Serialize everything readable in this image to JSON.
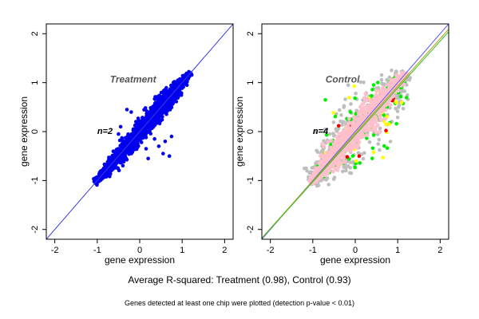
{
  "summary": "Average R-squared: Treatment (0.98), Control (0.93)",
  "footnote": "Genes detected at least one chip were plotted (detection p-value < 0.01)",
  "chart_data": [
    {
      "type": "scatter",
      "title": "Treatment",
      "annotation": "n=2",
      "xlabel": "gene expression",
      "ylabel": "gene expression",
      "xlim": [
        -2.2,
        2.2
      ],
      "ylim": [
        -2.2,
        2.2
      ],
      "xticks": [
        -2,
        -1,
        0,
        1,
        2
      ],
      "yticks": [
        -2,
        -1,
        0,
        1,
        2
      ],
      "grid": false,
      "reference_lines": [
        {
          "slope": 1,
          "intercept": 0,
          "color": "#3b3bdb"
        }
      ],
      "series": [
        {
          "color": "#0000ee",
          "cloud": {
            "center": [
              0.0,
              0.0
            ],
            "x_range": [
              -1.05,
              1.2
            ],
            "spread": 0.12,
            "count": 1400
          },
          "outliers": [
            [
              -0.3,
              0.45
            ],
            [
              -0.2,
              0.4
            ],
            [
              0.35,
              -0.15
            ],
            [
              0.45,
              -0.3
            ],
            [
              0.55,
              -0.45
            ],
            [
              0.6,
              -0.2
            ],
            [
              0.7,
              -0.5
            ],
            [
              -0.5,
              -0.05
            ],
            [
              0.2,
              -0.55
            ],
            [
              0.15,
              -0.35
            ],
            [
              -0.45,
              0.1
            ],
            [
              0.75,
              -0.1
            ]
          ]
        }
      ]
    },
    {
      "type": "scatter",
      "title": "Control",
      "annotation": "n=4",
      "xlabel": "gene expression",
      "ylabel": "gene expression",
      "xlim": [
        -2.2,
        2.2
      ],
      "ylim": [
        -2.2,
        2.2
      ],
      "xticks": [
        -2,
        -1,
        0,
        1,
        2
      ],
      "yticks": [
        -2,
        -1,
        0,
        1,
        2
      ],
      "grid": false,
      "reference_lines": [
        {
          "slope": 1.0,
          "intercept": 0.0,
          "color": "#5a5aff"
        },
        {
          "slope": 0.97,
          "intercept": -0.04,
          "color": "#b8a000"
        },
        {
          "slope": 0.96,
          "intercept": -0.07,
          "color": "#30c030"
        }
      ],
      "series": [
        {
          "color": "#bebebe",
          "cloud": {
            "center": [
              0.0,
              0.0
            ],
            "x_range": [
              -1.05,
              1.2
            ],
            "spread": 0.38,
            "count": 520
          }
        },
        {
          "color": "#00ee00",
          "cloud": {
            "center": [
              0.0,
              0.0
            ],
            "x_range": [
              -0.85,
              1.1
            ],
            "spread": 0.45,
            "count": 110
          }
        },
        {
          "color": "#ffff00",
          "cloud": {
            "center": [
              0.0,
              0.0
            ],
            "x_range": [
              -0.8,
              1.05
            ],
            "spread": 0.45,
            "count": 40
          }
        },
        {
          "color": "#ee0000",
          "cloud": {
            "center": [
              0.0,
              0.0
            ],
            "x_range": [
              -0.7,
              0.9
            ],
            "spread": 0.45,
            "count": 18
          }
        },
        {
          "color": "#ffc0cb",
          "cloud": {
            "center": [
              0.0,
              0.0
            ],
            "x_range": [
              -1.05,
              1.2
            ],
            "spread": 0.16,
            "count": 1100
          }
        }
      ]
    }
  ]
}
